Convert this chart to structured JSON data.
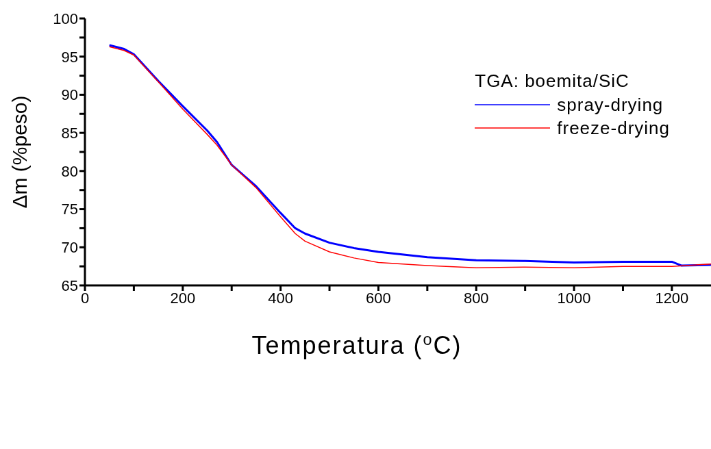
{
  "chart_data": {
    "type": "line",
    "xlabel": "Temperatura ($^{o}$C)",
    "ylabel": "Δm (%peso)",
    "legend_title": "TGA: boemita/SiC",
    "legend": "top right",
    "grid": false,
    "marker": "none",
    "line_style": "solid",
    "xlim": [
      0,
      1280
    ],
    "xticks": [
      0,
      {
        "value": 100,
        "label": null
      },
      200,
      {
        "value": 300,
        "label": null
      },
      400,
      {
        "value": 500,
        "label": null
      },
      600,
      {
        "value": 700,
        "label": null
      },
      800,
      {
        "value": 900,
        "label": null
      },
      1000,
      {
        "value": 1100,
        "label": null
      },
      1200
    ],
    "ylim": [
      65,
      100
    ],
    "yticks": [
      65,
      {
        "value": 67.5,
        "label": null
      },
      70,
      {
        "value": 72.5,
        "label": null
      },
      75,
      {
        "value": 77.5,
        "label": null
      },
      80,
      {
        "value": 82.5,
        "label": null
      },
      85,
      {
        "value": 87.5,
        "label": null
      },
      90,
      {
        "value": 92.5,
        "label": null
      },
      95,
      {
        "value": 97.5,
        "label": null
      },
      100
    ],
    "series": [
      {
        "name": "spray-drying",
        "color": "#0000ff",
        "x": [
          50,
          80,
          100,
          150,
          200,
          250,
          270,
          300,
          350,
          400,
          430,
          450,
          500,
          550,
          600,
          700,
          800,
          900,
          1000,
          1100,
          1200,
          1220,
          1280
        ],
        "values": [
          96.5,
          96.0,
          95.3,
          91.8,
          88.5,
          85.3,
          83.8,
          80.8,
          78.0,
          74.5,
          72.5,
          71.8,
          70.6,
          69.9,
          69.4,
          68.7,
          68.3,
          68.2,
          68.0,
          68.1,
          68.1,
          67.6,
          67.7
        ]
      },
      {
        "name": "freeze-drying",
        "color": "#ff0000",
        "x": [
          50,
          80,
          100,
          150,
          200,
          250,
          270,
          300,
          350,
          400,
          430,
          450,
          500,
          550,
          600,
          700,
          800,
          900,
          1000,
          1100,
          1200,
          1280
        ],
        "values": [
          96.3,
          95.8,
          95.2,
          91.7,
          88.1,
          84.8,
          83.4,
          80.8,
          77.8,
          74.0,
          71.8,
          70.8,
          69.4,
          68.6,
          68.0,
          67.6,
          67.3,
          67.4,
          67.3,
          67.5,
          67.5,
          67.8
        ]
      }
    ]
  }
}
